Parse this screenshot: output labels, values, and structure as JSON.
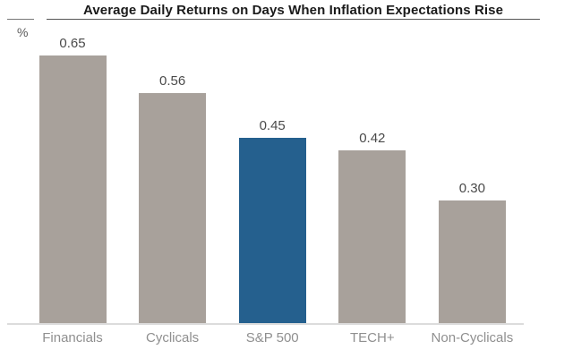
{
  "chart_data": {
    "type": "bar",
    "title": "Average Daily Returns on Days When Inflation Expectations Rise",
    "ylabel": "%",
    "categories": [
      "Financials",
      "Cyclicals",
      "S&P 500",
      "TECH+",
      "Non-Cyclicals"
    ],
    "values": [
      0.65,
      0.56,
      0.45,
      0.42,
      0.3
    ],
    "value_labels": [
      "0.65",
      "0.56",
      "0.45",
      "0.42",
      "0.30"
    ],
    "highlight_category": "S&P 500",
    "grid": false,
    "y_axis_ticks_shown": false,
    "value_labels_shown": true,
    "baseline_value": 0
  },
  "colors": {
    "bar_default": "#a8a19b",
    "bar_highlight": "#25608e",
    "title_text": "#1a1a1a",
    "value_label_text": "#4a4a4a",
    "category_label_text": "#8f8f8f",
    "baseline": "#dcdcdc",
    "title_underline": "#555555",
    "background": "#ffffff"
  }
}
